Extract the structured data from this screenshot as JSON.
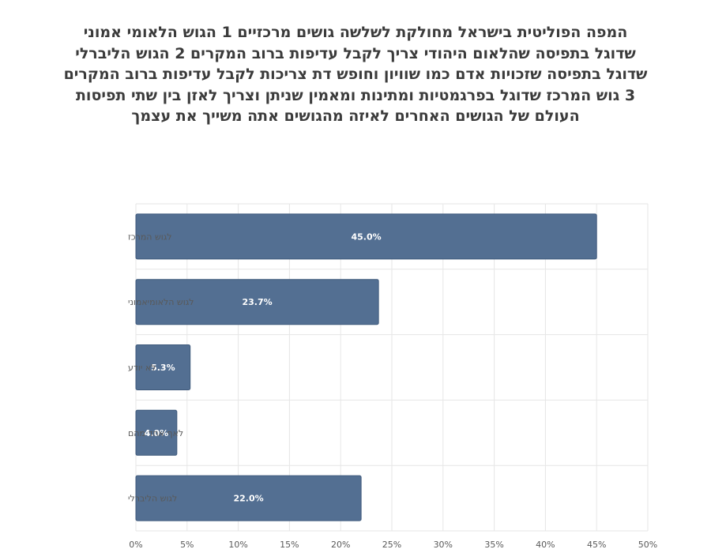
{
  "chart_data": {
    "type": "bar",
    "orientation": "horizontal",
    "title_lines": [
      "המפה הפוליטית בישראל מחולקת לשלשה גושים מרכזיים  1 הגוש הלאומי אמוני",
      "שדוגל בתפיסה שהלאום היהודי צריך לקבל עדיפות ברוב המקרים   2 הגוש הליברלי",
      "שדוגל בתפיסה שזכויות אדם כמו שוויון וחופש דת צריכות לקבל עדיפות ברוב המקרים",
      "3 גוש המרכז שדוגל בפרגמטיות ומתינות ומאמין שניתן וצריך לאזן בין שתי תפיסות",
      "העולם של הגושים  האחרים   לאיזה מהגושים אתה משייך את עצמך"
    ],
    "categories": [
      "לגוש המרכז",
      "לגוש הלאומיאמוני",
      "לא יודע",
      "לאף אחד מהם",
      "לגוש הליברלי"
    ],
    "values": [
      45.0,
      23.7,
      5.3,
      4.0,
      22.0
    ],
    "value_labels": [
      "45.0%",
      "23.7%",
      "5.3%",
      "4.0%",
      "22.0%"
    ],
    "xlim": [
      0,
      50
    ],
    "x_ticks": [
      "0%",
      "5%",
      "10%",
      "15%",
      "20%",
      "25%",
      "30%",
      "35%",
      "40%",
      "45%",
      "50%"
    ],
    "grid": true,
    "bar_color": "#536f92",
    "bar_edge_color": "#3f5a7c",
    "label_color": "#ffffff"
  }
}
